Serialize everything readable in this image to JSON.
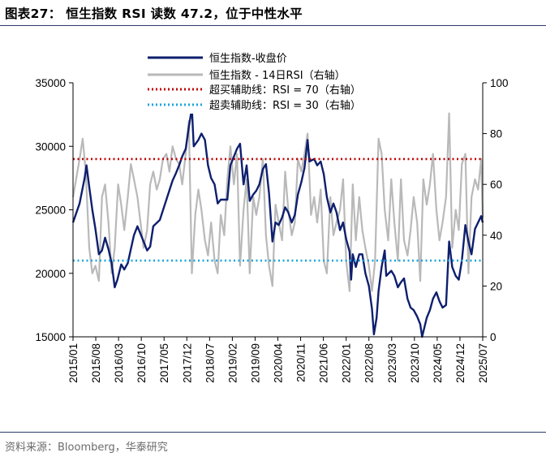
{
  "figure": {
    "title": "图表27： 恒生指数 RSI 读数 47.2，位于中性水平",
    "source": "资料来源：Bloomberg，华泰研究"
  },
  "colors": {
    "index_line": "#0d1f6e",
    "rsi_line": "#b9b9b9",
    "overbought": "#c00000",
    "oversold": "#1aa3e0",
    "rule": "#2b3a67"
  },
  "chart_data": {
    "type": "line",
    "title": "",
    "x_tick_labels": [
      "2015/01",
      "2015/08",
      "2016/03",
      "2016/10",
      "2017/05",
      "2017/12",
      "2018/07",
      "2019/02",
      "2019/09",
      "2020/04",
      "2020/11",
      "2021/06",
      "2022/01",
      "2022/08",
      "2023/03",
      "2023/10",
      "2024/05",
      "2024/12",
      "2025/07"
    ],
    "left_axis": {
      "ylim": [
        15000,
        35000
      ],
      "ticks": [
        15000,
        20000,
        25000,
        30000,
        35000
      ]
    },
    "right_axis": {
      "ylim": [
        0,
        100
      ],
      "ticks": [
        0,
        20,
        40,
        60,
        80,
        100
      ]
    },
    "legend": {
      "index": "恒生指数-收盘价",
      "rsi": "恒生指数 - 14日RSI（右轴）",
      "overbought": "超买辅助线：RSI = 70（右轴）",
      "oversold": "超卖辅助线：RSI = 30（右轴）"
    },
    "overbought_level": 70,
    "oversold_level": 30,
    "latest_rsi": 47.2,
    "series": [
      {
        "name": "恒生指数-收盘价",
        "axis": "left",
        "points": [
          [
            2015.0,
            24000
          ],
          [
            2015.17,
            25500
          ],
          [
            2015.3,
            27500
          ],
          [
            2015.35,
            28500
          ],
          [
            2015.42,
            26800
          ],
          [
            2015.5,
            25000
          ],
          [
            2015.58,
            23500
          ],
          [
            2015.67,
            21500
          ],
          [
            2015.75,
            21800
          ],
          [
            2015.83,
            22800
          ],
          [
            2015.92,
            21900
          ],
          [
            2016.0,
            20800
          ],
          [
            2016.08,
            18900
          ],
          [
            2016.15,
            19500
          ],
          [
            2016.25,
            20700
          ],
          [
            2016.33,
            20300
          ],
          [
            2016.42,
            20800
          ],
          [
            2016.5,
            21900
          ],
          [
            2016.58,
            23000
          ],
          [
            2016.67,
            23700
          ],
          [
            2016.75,
            23100
          ],
          [
            2016.83,
            22500
          ],
          [
            2016.92,
            21800
          ],
          [
            2017.0,
            22100
          ],
          [
            2017.08,
            23700
          ],
          [
            2017.25,
            24200
          ],
          [
            2017.42,
            25800
          ],
          [
            2017.58,
            27300
          ],
          [
            2017.67,
            27900
          ],
          [
            2017.75,
            28500
          ],
          [
            2017.83,
            29200
          ],
          [
            2017.92,
            29800
          ],
          [
            2018.0,
            31500
          ],
          [
            2018.08,
            33000
          ],
          [
            2018.13,
            30000
          ],
          [
            2018.25,
            30500
          ],
          [
            2018.33,
            31000
          ],
          [
            2018.42,
            30500
          ],
          [
            2018.5,
            28500
          ],
          [
            2018.58,
            27500
          ],
          [
            2018.67,
            27000
          ],
          [
            2018.75,
            25500
          ],
          [
            2018.83,
            25800
          ],
          [
            2018.92,
            25800
          ],
          [
            2019.0,
            25800
          ],
          [
            2019.08,
            28500
          ],
          [
            2019.25,
            29800
          ],
          [
            2019.33,
            30200
          ],
          [
            2019.42,
            27000
          ],
          [
            2019.5,
            28500
          ],
          [
            2019.58,
            25700
          ],
          [
            2019.67,
            26200
          ],
          [
            2019.75,
            26500
          ],
          [
            2019.83,
            27000
          ],
          [
            2019.92,
            28200
          ],
          [
            2020.0,
            28600
          ],
          [
            2020.08,
            26300
          ],
          [
            2020.17,
            22500
          ],
          [
            2020.25,
            24000
          ],
          [
            2020.33,
            23800
          ],
          [
            2020.42,
            24400
          ],
          [
            2020.5,
            25200
          ],
          [
            2020.58,
            24800
          ],
          [
            2020.67,
            24000
          ],
          [
            2020.75,
            24600
          ],
          [
            2020.83,
            26200
          ],
          [
            2020.92,
            27200
          ],
          [
            2021.0,
            28300
          ],
          [
            2021.08,
            30500
          ],
          [
            2021.13,
            28800
          ],
          [
            2021.25,
            29000
          ],
          [
            2021.33,
            28500
          ],
          [
            2021.42,
            28800
          ],
          [
            2021.5,
            27800
          ],
          [
            2021.58,
            26000
          ],
          [
            2021.67,
            24800
          ],
          [
            2021.75,
            25500
          ],
          [
            2021.83,
            24800
          ],
          [
            2021.92,
            23400
          ],
          [
            2022.0,
            24000
          ],
          [
            2022.08,
            22700
          ],
          [
            2022.17,
            21700
          ],
          [
            2022.21,
            19500
          ],
          [
            2022.25,
            21500
          ],
          [
            2022.33,
            20500
          ],
          [
            2022.42,
            21500
          ],
          [
            2022.5,
            21500
          ],
          [
            2022.58,
            20000
          ],
          [
            2022.67,
            19000
          ],
          [
            2022.75,
            17200
          ],
          [
            2022.8,
            15200
          ],
          [
            2022.87,
            16500
          ],
          [
            2022.92,
            18600
          ],
          [
            2023.0,
            20500
          ],
          [
            2023.08,
            21800
          ],
          [
            2023.12,
            19800
          ],
          [
            2023.25,
            20200
          ],
          [
            2023.33,
            19800
          ],
          [
            2023.42,
            18900
          ],
          [
            2023.5,
            19300
          ],
          [
            2023.58,
            19600
          ],
          [
            2023.67,
            18000
          ],
          [
            2023.75,
            17300
          ],
          [
            2023.83,
            17100
          ],
          [
            2023.92,
            16600
          ],
          [
            2024.0,
            16000
          ],
          [
            2024.05,
            15000
          ],
          [
            2024.17,
            16500
          ],
          [
            2024.25,
            17100
          ],
          [
            2024.33,
            18000
          ],
          [
            2024.42,
            18500
          ],
          [
            2024.5,
            17800
          ],
          [
            2024.58,
            17300
          ],
          [
            2024.67,
            17500
          ],
          [
            2024.75,
            22500
          ],
          [
            2024.83,
            20500
          ],
          [
            2024.92,
            19800
          ],
          [
            2025.0,
            19500
          ],
          [
            2025.08,
            21000
          ],
          [
            2025.17,
            23800
          ],
          [
            2025.25,
            22500
          ],
          [
            2025.33,
            21500
          ],
          [
            2025.42,
            23500
          ],
          [
            2025.5,
            24000
          ],
          [
            2025.58,
            24500
          ],
          [
            2025.62,
            24000
          ]
        ]
      },
      {
        "name": "恒生指数 - 14日RSI（右轴）",
        "axis": "right",
        "points": [
          [
            2015.0,
            55
          ],
          [
            2015.08,
            62
          ],
          [
            2015.17,
            70
          ],
          [
            2015.25,
            78
          ],
          [
            2015.33,
            65
          ],
          [
            2015.42,
            35
          ],
          [
            2015.5,
            25
          ],
          [
            2015.58,
            28
          ],
          [
            2015.67,
            22
          ],
          [
            2015.75,
            55
          ],
          [
            2015.83,
            60
          ],
          [
            2015.92,
            45
          ],
          [
            2016.0,
            25
          ],
          [
            2016.08,
            35
          ],
          [
            2016.17,
            60
          ],
          [
            2016.25,
            52
          ],
          [
            2016.33,
            42
          ],
          [
            2016.42,
            55
          ],
          [
            2016.5,
            68
          ],
          [
            2016.58,
            62
          ],
          [
            2016.67,
            55
          ],
          [
            2016.75,
            45
          ],
          [
            2016.83,
            35
          ],
          [
            2016.92,
            42
          ],
          [
            2017.0,
            60
          ],
          [
            2017.08,
            65
          ],
          [
            2017.17,
            58
          ],
          [
            2017.25,
            62
          ],
          [
            2017.33,
            70
          ],
          [
            2017.42,
            72
          ],
          [
            2017.5,
            65
          ],
          [
            2017.58,
            75
          ],
          [
            2017.67,
            70
          ],
          [
            2017.75,
            68
          ],
          [
            2017.83,
            60
          ],
          [
            2017.92,
            72
          ],
          [
            2018.0,
            85
          ],
          [
            2018.08,
            25
          ],
          [
            2018.17,
            48
          ],
          [
            2018.25,
            58
          ],
          [
            2018.33,
            50
          ],
          [
            2018.42,
            38
          ],
          [
            2018.5,
            32
          ],
          [
            2018.58,
            45
          ],
          [
            2018.67,
            30
          ],
          [
            2018.75,
            25
          ],
          [
            2018.83,
            48
          ],
          [
            2018.92,
            40
          ],
          [
            2019.0,
            62
          ],
          [
            2019.08,
            75
          ],
          [
            2019.17,
            60
          ],
          [
            2019.25,
            72
          ],
          [
            2019.33,
            28
          ],
          [
            2019.42,
            50
          ],
          [
            2019.5,
            62
          ],
          [
            2019.58,
            25
          ],
          [
            2019.67,
            55
          ],
          [
            2019.75,
            48
          ],
          [
            2019.83,
            55
          ],
          [
            2019.92,
            70
          ],
          [
            2020.0,
            40
          ],
          [
            2020.08,
            28
          ],
          [
            2020.17,
            20
          ],
          [
            2020.25,
            52
          ],
          [
            2020.33,
            45
          ],
          [
            2020.42,
            38
          ],
          [
            2020.5,
            65
          ],
          [
            2020.58,
            50
          ],
          [
            2020.67,
            40
          ],
          [
            2020.75,
            45
          ],
          [
            2020.83,
            70
          ],
          [
            2020.92,
            65
          ],
          [
            2021.0,
            72
          ],
          [
            2021.08,
            80
          ],
          [
            2021.17,
            48
          ],
          [
            2021.25,
            55
          ],
          [
            2021.33,
            45
          ],
          [
            2021.42,
            58
          ],
          [
            2021.5,
            30
          ],
          [
            2021.58,
            25
          ],
          [
            2021.67,
            55
          ],
          [
            2021.75,
            40
          ],
          [
            2021.83,
            45
          ],
          [
            2021.92,
            50
          ],
          [
            2022.0,
            62
          ],
          [
            2022.08,
            30
          ],
          [
            2022.17,
            18
          ],
          [
            2022.25,
            60
          ],
          [
            2022.33,
            38
          ],
          [
            2022.42,
            55
          ],
          [
            2022.5,
            42
          ],
          [
            2022.58,
            35
          ],
          [
            2022.67,
            28
          ],
          [
            2022.75,
            18
          ],
          [
            2022.83,
            30
          ],
          [
            2022.92,
            78
          ],
          [
            2023.0,
            72
          ],
          [
            2023.08,
            50
          ],
          [
            2023.17,
            38
          ],
          [
            2023.25,
            62
          ],
          [
            2023.33,
            45
          ],
          [
            2023.42,
            30
          ],
          [
            2023.5,
            62
          ],
          [
            2023.58,
            38
          ],
          [
            2023.67,
            32
          ],
          [
            2023.75,
            42
          ],
          [
            2023.83,
            55
          ],
          [
            2023.92,
            45
          ],
          [
            2024.0,
            22
          ],
          [
            2024.08,
            62
          ],
          [
            2024.17,
            52
          ],
          [
            2024.25,
            60
          ],
          [
            2024.33,
            72
          ],
          [
            2024.42,
            50
          ],
          [
            2024.5,
            38
          ],
          [
            2024.58,
            45
          ],
          [
            2024.67,
            55
          ],
          [
            2024.75,
            88
          ],
          [
            2024.83,
            35
          ],
          [
            2024.92,
            50
          ],
          [
            2025.0,
            42
          ],
          [
            2025.08,
            68
          ],
          [
            2025.17,
            72
          ],
          [
            2025.25,
            25
          ],
          [
            2025.33,
            55
          ],
          [
            2025.42,
            62
          ],
          [
            2025.5,
            58
          ],
          [
            2025.58,
            70
          ],
          [
            2025.62,
            47
          ]
        ]
      }
    ]
  }
}
